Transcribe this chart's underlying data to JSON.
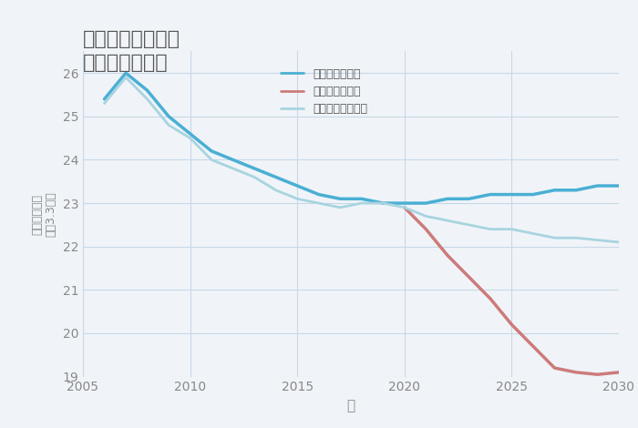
{
  "title": "兵庫県英賀保駅の\n土地の価格推移",
  "xlabel": "年",
  "ylabel": "単価（万円）\n坪（3.3㎡）",
  "background_color": "#f0f4f8",
  "plot_background": "#f0f4f8",
  "xlim": [
    2005,
    2030
  ],
  "ylim": [
    19,
    26.5
  ],
  "yticks": [
    19,
    20,
    21,
    22,
    23,
    24,
    25,
    26
  ],
  "xticks": [
    2005,
    2010,
    2015,
    2020,
    2025,
    2030
  ],
  "good_scenario": {
    "x": [
      2006,
      2007,
      2008,
      2009,
      2010,
      2011,
      2012,
      2013,
      2014,
      2015,
      2016,
      2017,
      2018,
      2019,
      2020,
      2021,
      2022,
      2023,
      2024,
      2025,
      2026,
      2027,
      2028,
      2029,
      2030
    ],
    "y": [
      25.4,
      26.0,
      25.6,
      25.0,
      24.6,
      24.2,
      24.0,
      23.8,
      23.6,
      23.4,
      23.2,
      23.1,
      23.1,
      23.0,
      23.0,
      23.0,
      23.1,
      23.1,
      23.2,
      23.2,
      23.2,
      23.3,
      23.3,
      23.4,
      23.4
    ],
    "color": "#4aafd4",
    "label": "グッドシナリオ",
    "linewidth": 2.5
  },
  "bad_scenario": {
    "x": [
      2020,
      2021,
      2022,
      2023,
      2024,
      2025,
      2026,
      2027,
      2028,
      2029,
      2030
    ],
    "y": [
      22.9,
      22.4,
      21.8,
      21.3,
      20.8,
      20.2,
      19.7,
      19.2,
      19.1,
      19.05,
      19.1
    ],
    "color": "#cd7b7b",
    "label": "バッドシナリオ",
    "linewidth": 2.5
  },
  "normal_scenario": {
    "x": [
      2006,
      2007,
      2008,
      2009,
      2010,
      2011,
      2012,
      2013,
      2014,
      2015,
      2016,
      2017,
      2018,
      2019,
      2020,
      2021,
      2022,
      2023,
      2024,
      2025,
      2026,
      2027,
      2028,
      2029,
      2030
    ],
    "y": [
      25.3,
      25.9,
      25.4,
      24.8,
      24.5,
      24.0,
      23.8,
      23.6,
      23.3,
      23.1,
      23.0,
      22.9,
      23.0,
      23.0,
      22.9,
      22.7,
      22.6,
      22.5,
      22.4,
      22.4,
      22.3,
      22.2,
      22.2,
      22.15,
      22.1
    ],
    "color": "#a8d4e0",
    "label": "ノーマルシナリオ",
    "linewidth": 2.0
  },
  "grid_color": "#c8d8e8",
  "title_color": "#555555",
  "tick_color": "#888888",
  "legend_text_color": "#555555"
}
